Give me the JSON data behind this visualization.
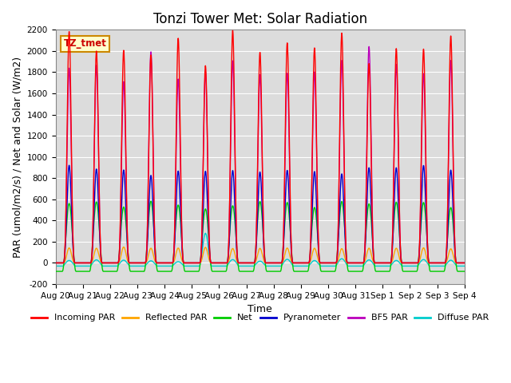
{
  "title": "Tonzi Tower Met: Solar Radiation",
  "xlabel": "Time",
  "ylabel_plain": "PAR (umol/m2/s) / Net and Solar (W/m2)",
  "ylim": [
    -200,
    2200
  ],
  "yticks": [
    -200,
    0,
    200,
    400,
    600,
    800,
    1000,
    1200,
    1400,
    1600,
    1800,
    2000,
    2200
  ],
  "n_days": 15,
  "series": {
    "incoming_par": {
      "color": "#FF0000",
      "label": "Incoming PAR"
    },
    "reflected_par": {
      "color": "#FFA500",
      "label": "Reflected PAR"
    },
    "net": {
      "color": "#00CC00",
      "label": "Net"
    },
    "pyranometer": {
      "color": "#0000CC",
      "label": "Pyranometer"
    },
    "bf5_par": {
      "color": "#BB00BB",
      "label": "BF5 PAR"
    },
    "diffuse_par": {
      "color": "#00CCCC",
      "label": "Diffuse PAR"
    }
  },
  "bg_color": "#DCDCDC",
  "fig_bg": "#FFFFFF",
  "label_box_text": "TZ_tmet",
  "label_box_bg": "#FFFFCC",
  "label_box_edge": "#CC8800",
  "label_box_text_color": "#CC0000",
  "title_fontsize": 12,
  "axis_label_fontsize": 9,
  "tick_fontsize": 7.5,
  "legend_fontsize": 8,
  "xtick_labels": [
    "Aug 20",
    "Aug 21",
    "Aug 22",
    "Aug 23",
    "Aug 24",
    "Aug 25",
    "Aug 26",
    "Aug 27",
    "Aug 28",
    "Aug 29",
    "Aug 30",
    "Aug 31",
    "Sep 1",
    "Sep 2",
    "Sep 3",
    "Sep 4"
  ]
}
